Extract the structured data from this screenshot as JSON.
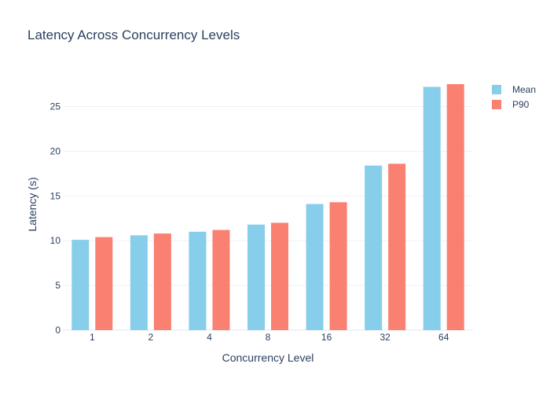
{
  "chart_data": {
    "type": "bar",
    "title": "Latency Across Concurrency Levels",
    "xlabel": "Concurrency Level",
    "ylabel": "Latency (s)",
    "categories": [
      "1",
      "2",
      "4",
      "8",
      "16",
      "32",
      "64"
    ],
    "series": [
      {
        "name": "Mean",
        "color": "#87ceeb",
        "values": [
          10.1,
          10.6,
          11.0,
          11.8,
          14.1,
          18.4,
          27.2
        ]
      },
      {
        "name": "P90",
        "color": "#fa8072",
        "values": [
          10.4,
          10.8,
          11.2,
          12.0,
          14.3,
          18.6,
          27.5
        ]
      }
    ],
    "ylim": [
      0,
      29
    ],
    "yticks": [
      0,
      5,
      10,
      15,
      20,
      25
    ],
    "grid": true,
    "legend": "top-right"
  }
}
